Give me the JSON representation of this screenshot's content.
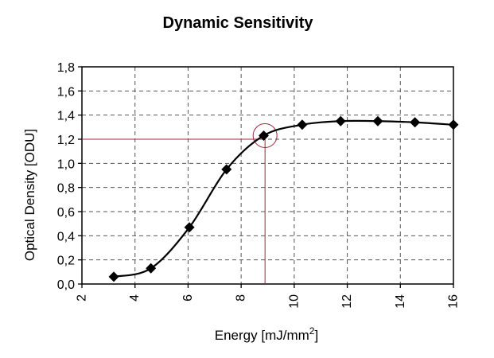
{
  "chart_data": {
    "type": "line",
    "title": "Dynamic Sensitivity",
    "xlabel": "Energy [mJ/mm",
    "xlabel_sup": "2",
    "xlabel_end": "]",
    "ylabel": "Optical Density [ODU]",
    "xlim": [
      2,
      16
    ],
    "ylim": [
      0,
      1.8
    ],
    "xticks": [
      2,
      4,
      6,
      8,
      10,
      12,
      14,
      16
    ],
    "yticks": [
      0,
      0.2,
      0.4,
      0.6,
      0.8,
      1.0,
      1.2,
      1.4,
      1.6,
      1.8
    ],
    "xtick_labels": [
      "2",
      "4",
      "6",
      "8",
      "10",
      "12",
      "14",
      "16"
    ],
    "ytick_labels": [
      "0,0",
      "0,2",
      "0,4",
      "0,6",
      "0,8",
      "1,0",
      "1,2",
      "1,4",
      "1,6",
      "1,8"
    ],
    "grid": true,
    "grid_style": "dashed",
    "legend": "none",
    "series": [
      {
        "marker": "diamond",
        "color": "#000000",
        "smooth": true,
        "x": [
          3.2,
          4.6,
          6.05,
          7.45,
          8.85,
          10.3,
          11.75,
          13.15,
          14.55,
          16.0
        ],
        "y": [
          0.06,
          0.13,
          0.47,
          0.95,
          1.23,
          1.32,
          1.35,
          1.35,
          1.34,
          1.32
        ]
      }
    ],
    "annotation": {
      "type": "reference-lines",
      "color": "#a0263a",
      "x": 8.9,
      "y": 1.2,
      "circle_at": [
        8.9,
        1.23
      ]
    }
  }
}
